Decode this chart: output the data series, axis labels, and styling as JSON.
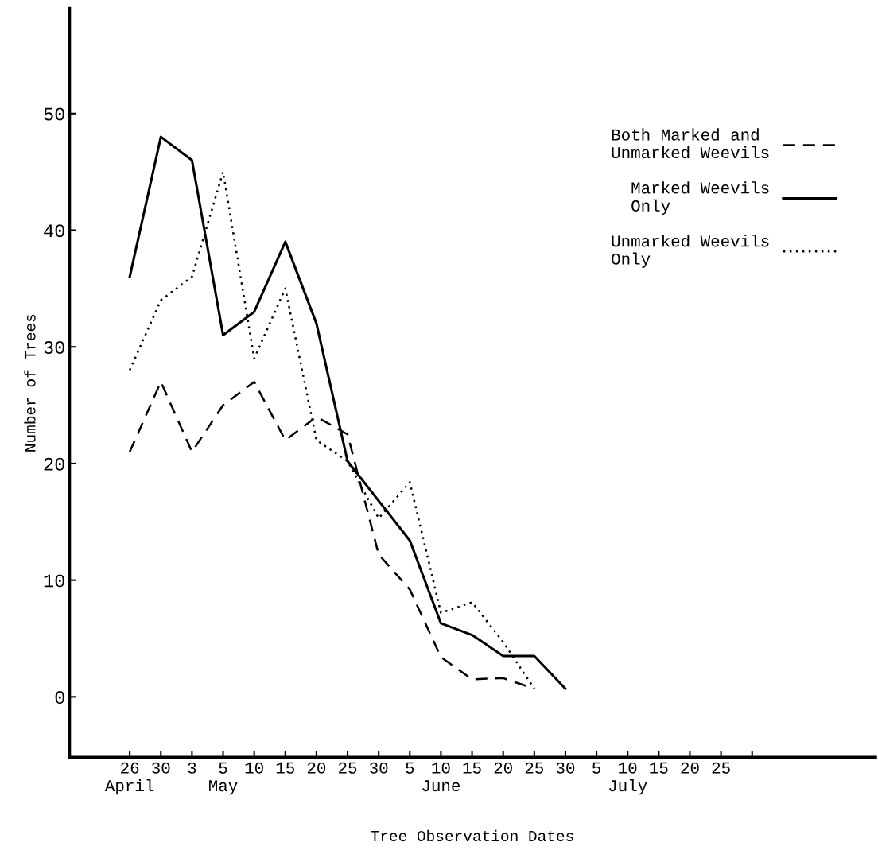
{
  "chart_data": {
    "type": "line",
    "xlabel": "Tree Observation Dates",
    "ylabel": "Number of Trees",
    "categories": [
      "26\nApril",
      "30",
      "3",
      "5\nMay",
      "10",
      "15",
      "20",
      "25",
      "30",
      "5",
      "10\nJune",
      "15",
      "20",
      "25",
      "30",
      "5",
      "10\nJuly",
      "15",
      "20",
      "25",
      null
    ],
    "series": [
      {
        "name": "Both Marked and\nUnmarked Weevils",
        "color": "#000000",
        "line_style": "dashed",
        "values": [
          21,
          27,
          21,
          25,
          27,
          22,
          24,
          22.5,
          12.2,
          9.2,
          3.4,
          1.5,
          1.6,
          0.7,
          null,
          null,
          null,
          null,
          null,
          null,
          null
        ]
      },
      {
        "name": "Marked Weevils\nOnly",
        "color": "#000000",
        "line_style": "solid",
        "values": [
          36,
          48,
          46,
          31,
          33,
          39,
          32,
          20.2,
          16.8,
          13.4,
          6.3,
          5.3,
          3.5,
          3.5,
          0.7,
          null,
          null,
          null,
          null,
          null,
          null
        ]
      },
      {
        "name": "Unmarked Weevils\nOnly",
        "color": "#000000",
        "line_style": "dotted",
        "values": [
          28,
          34,
          36,
          45,
          29,
          35,
          22,
          20.2,
          15.3,
          18.4,
          7.2,
          8.1,
          4.7,
          0.7,
          null,
          null,
          null,
          null,
          null,
          null,
          null
        ]
      }
    ],
    "ylim": [
      -5.2,
      59
    ],
    "yticks": [
      0,
      10,
      20,
      30,
      40,
      50
    ],
    "grid": false,
    "legend": "top right",
    "marker": "none"
  }
}
